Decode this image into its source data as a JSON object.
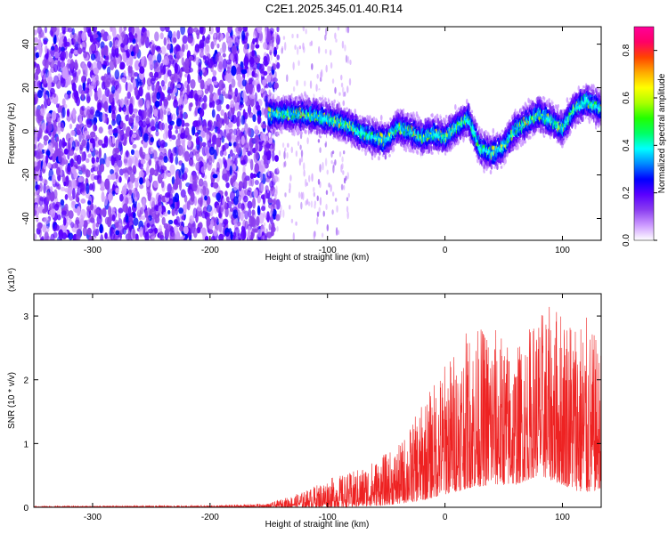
{
  "title": "C2E1.2025.345.01.40.R14",
  "chart_data": [
    {
      "type": "heatmap",
      "panel": "spectrogram",
      "xlabel": "Height of straight line (km)",
      "ylabel": "Frequency (Hz)",
      "xlim": [
        -350,
        133
      ],
      "ylim": [
        -50,
        48
      ],
      "xticks": [
        -300,
        -200,
        -100,
        0,
        100
      ],
      "yticks": [
        -40,
        -20,
        0,
        20,
        40
      ],
      "colorbar": {
        "label": "Normalized spectral amplitude",
        "range": [
          0.0,
          0.9
        ],
        "ticks": [
          0.0,
          0.2,
          0.4,
          0.6,
          0.8
        ],
        "ticklabels": [
          "0.0",
          "0.2",
          "0.4",
          "0.6",
          "0.8"
        ],
        "colors": [
          "#ffffff",
          "#cc99ff",
          "#8a3df0",
          "#5a00ff",
          "#0000ff",
          "#0088ff",
          "#00ffff",
          "#00ff66",
          "#22ff00",
          "#aaff00",
          "#ffff00",
          "#ffaa00",
          "#ff4400",
          "#ff0066",
          "#ff0099"
        ]
      },
      "noise_region_x": [
        -350,
        -150
      ],
      "ridge": {
        "x": [
          -150,
          -130,
          -110,
          -90,
          -80,
          -70,
          -60,
          -50,
          -40,
          -30,
          -20,
          -10,
          0,
          10,
          20,
          30,
          40,
          50,
          60,
          70,
          80,
          90,
          100,
          110,
          120,
          133
        ],
        "center_freq": [
          8,
          8,
          7,
          4,
          2,
          -1,
          -3,
          -4,
          2,
          0,
          -3,
          -1,
          -3,
          2,
          6,
          -8,
          -10,
          -7,
          1,
          4,
          8,
          5,
          1,
          10,
          14,
          10
        ]
      }
    },
    {
      "type": "line",
      "panel": "snr",
      "xlabel": "Height of straight line (km)",
      "ylabel": "SNR (10 * v/v)",
      "scale_label": "(x10⁴)",
      "xlim": [
        -350,
        133
      ],
      "ylim": [
        0,
        3.35
      ],
      "xticks": [
        -300,
        -200,
        -100,
        0,
        100
      ],
      "yticks": [
        0,
        1,
        2,
        3
      ],
      "envelope": {
        "x": [
          -350,
          -200,
          -150,
          -120,
          -100,
          -80,
          -60,
          -40,
          -20,
          0,
          20,
          40,
          60,
          80,
          100,
          120,
          133
        ],
        "peak": [
          0.02,
          0.03,
          0.06,
          0.25,
          0.45,
          0.55,
          0.75,
          0.95,
          1.6,
          2.3,
          2.8,
          2.9,
          2.5,
          3.1,
          3.2,
          3.0,
          2.5
        ],
        "base": [
          0.0,
          0.0,
          0.0,
          0.0,
          0.0,
          0.0,
          0.02,
          0.05,
          0.1,
          0.2,
          0.3,
          0.35,
          0.35,
          0.5,
          0.35,
          0.2,
          0.3
        ]
      }
    }
  ]
}
